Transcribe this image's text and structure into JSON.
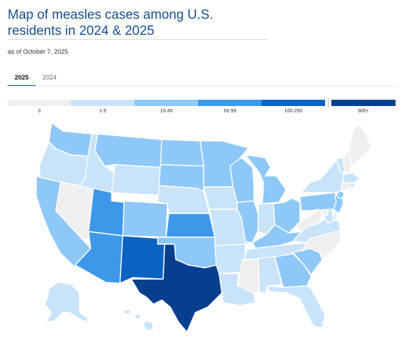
{
  "title": "Map of measles cases among U.S. residents in 2024 & 2025",
  "subtitle": "as of October 7, 2025",
  "tabs": [
    {
      "label": "2025",
      "selected": true
    },
    {
      "label": "2024",
      "selected": false
    }
  ],
  "legend": [
    {
      "label": "0",
      "color": "#efefef"
    },
    {
      "label": "1-9",
      "color": "#c9e3fb"
    },
    {
      "label": "10-49",
      "color": "#8ec8f9"
    },
    {
      "label": "50-99",
      "color": "#3d98ea"
    },
    {
      "label": "100-250",
      "color": "#0a62c3"
    },
    {
      "label": "800+",
      "color": "#073f8f"
    }
  ],
  "colors": {
    "title": "#1b4f8a",
    "state_border": "#ffffff"
  },
  "map": {
    "states": [
      {
        "id": "WA",
        "category": "10-49"
      },
      {
        "id": "OR",
        "category": "1-9"
      },
      {
        "id": "CA",
        "category": "10-49"
      },
      {
        "id": "NV",
        "category": "0"
      },
      {
        "id": "ID",
        "category": "1-9"
      },
      {
        "id": "MT",
        "category": "10-49"
      },
      {
        "id": "WY",
        "category": "1-9"
      },
      {
        "id": "UT",
        "category": "50-99"
      },
      {
        "id": "AZ",
        "category": "50-99"
      },
      {
        "id": "CO",
        "category": "10-49"
      },
      {
        "id": "NM",
        "category": "100-250"
      },
      {
        "id": "ND",
        "category": "10-49"
      },
      {
        "id": "SD",
        "category": "10-49"
      },
      {
        "id": "NE",
        "category": "1-9"
      },
      {
        "id": "KS",
        "category": "50-99"
      },
      {
        "id": "OK",
        "category": "10-49"
      },
      {
        "id": "TX",
        "category": "800+"
      },
      {
        "id": "MN",
        "category": "10-49"
      },
      {
        "id": "IA",
        "category": "1-9"
      },
      {
        "id": "MO",
        "category": "1-9"
      },
      {
        "id": "AR",
        "category": "1-9"
      },
      {
        "id": "LA",
        "category": "1-9"
      },
      {
        "id": "WI",
        "category": "10-49"
      },
      {
        "id": "IL",
        "category": "10-49"
      },
      {
        "id": "MI",
        "category": "10-49"
      },
      {
        "id": "IN",
        "category": "1-9"
      },
      {
        "id": "OH",
        "category": "10-49"
      },
      {
        "id": "KY",
        "category": "10-49"
      },
      {
        "id": "TN",
        "category": "1-9"
      },
      {
        "id": "MS",
        "category": "0"
      },
      {
        "id": "AL",
        "category": "1-9"
      },
      {
        "id": "GA",
        "category": "10-49"
      },
      {
        "id": "FL",
        "category": "1-9"
      },
      {
        "id": "SC",
        "category": "10-49"
      },
      {
        "id": "NC",
        "category": "0"
      },
      {
        "id": "VA",
        "category": "1-9"
      },
      {
        "id": "WV",
        "category": "0"
      },
      {
        "id": "PA",
        "category": "10-49"
      },
      {
        "id": "NY",
        "category": "1-9"
      },
      {
        "id": "VT",
        "category": "1-9"
      },
      {
        "id": "NH",
        "category": "0"
      },
      {
        "id": "ME",
        "category": "0"
      },
      {
        "id": "MA",
        "category": "1-9"
      },
      {
        "id": "CT",
        "category": "0"
      },
      {
        "id": "RI",
        "category": "1-9"
      },
      {
        "id": "NJ",
        "category": "10-49"
      },
      {
        "id": "DE",
        "category": "0"
      },
      {
        "id": "MD",
        "category": "1-9"
      },
      {
        "id": "DC",
        "category": "0"
      },
      {
        "id": "NYC",
        "category": "10-49"
      },
      {
        "id": "AK",
        "category": "1-9"
      },
      {
        "id": "HI",
        "category": "1-9"
      }
    ]
  }
}
